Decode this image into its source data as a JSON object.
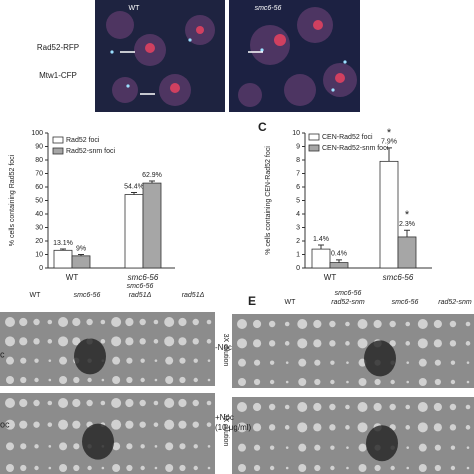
{
  "figure": {
    "micro": {
      "wt": "WT",
      "mut": "smc6-56",
      "ch1": "Rad52-RFP",
      "ch2": "Mtw1-CFP"
    },
    "panel_c": "C",
    "panel_e": "E",
    "plates_d": {
      "columns": [
        [
          "WT"
        ],
        [
          "smc6-56"
        ],
        [
          "smc6-56",
          "rad51Δ"
        ],
        [
          "rad51Δ"
        ]
      ],
      "dilution": "3X dilution",
      "rows": [
        "c",
        "oc"
      ]
    },
    "plates_e": {
      "columns": [
        [
          "WT"
        ],
        [
          "smc6-56",
          "rad52-snm"
        ],
        [
          "smc6-56"
        ],
        [
          "rad52-snm"
        ]
      ],
      "rows": [
        [
          "-Noc"
        ],
        [
          "+Noc",
          "(10 μg/ml)"
        ]
      ]
    }
  },
  "chart_data": [
    {
      "type": "bar",
      "ylabel": "% cells containing Rad52 foci",
      "categories": [
        "WT",
        "smc6-56"
      ],
      "series": [
        {
          "name": "Rad52 foci",
          "color": "#ffffff",
          "values": [
            13.1,
            54.4
          ],
          "errors": [
            1,
            1.5
          ],
          "value_labels": [
            "13.1%",
            "54.4%"
          ]
        },
        {
          "name": "Rad52-snm foci",
          "color": "#a6a6a6",
          "values": [
            9,
            62.9
          ],
          "errors": [
            1,
            1.5
          ],
          "value_labels": [
            "9%",
            "62.9%"
          ]
        }
      ],
      "ylim": [
        0,
        100
      ],
      "yticks": [
        0,
        10,
        20,
        30,
        40,
        50,
        60,
        70,
        80,
        90,
        100
      ]
    },
    {
      "type": "bar",
      "ylabel": "% cells containing CEN-Rad52 foci",
      "categories": [
        "WT",
        "smc6-56"
      ],
      "series": [
        {
          "name": "CEN-Rad52 foci",
          "color": "#ffffff",
          "values": [
            1.4,
            7.9
          ],
          "errors": [
            0.3,
            1.0
          ],
          "value_labels": [
            "1.4%",
            "7.9%"
          ],
          "annotations": [
            null,
            "*"
          ]
        },
        {
          "name": "CEN-Rad52-snm foci",
          "color": "#a6a6a6",
          "values": [
            0.4,
            2.3
          ],
          "errors": [
            0.2,
            0.5
          ],
          "value_labels": [
            "0.4%",
            "2.3%"
          ],
          "annotations": [
            null,
            "*"
          ]
        }
      ],
      "ylim": [
        0,
        10
      ],
      "yticks": [
        0,
        1,
        2,
        3,
        4,
        5,
        6,
        7,
        8,
        9,
        10
      ]
    }
  ]
}
